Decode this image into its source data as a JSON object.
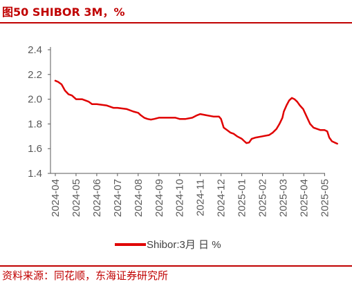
{
  "header": {
    "title": "图50  SHIBOR 3M，%"
  },
  "footer": {
    "source": "资料来源：同花顺，东海证券研究所"
  },
  "colors": {
    "accent": "#c00000",
    "series": "#e00000",
    "axis": "#595959"
  },
  "chart_data": {
    "type": "line",
    "title": "",
    "xlabel": "",
    "ylabel": "",
    "ylim": [
      1.4,
      2.4
    ],
    "yticks": [
      "1.4",
      "1.6",
      "1.8",
      "2.0",
      "2.2",
      "2.4"
    ],
    "xticks": [
      "2024-04",
      "2024-05",
      "2024-06",
      "2024-07",
      "2024-08",
      "2024-09",
      "2024-10",
      "2024-11",
      "2024-12",
      "2025-01",
      "2025-02",
      "2025-03",
      "2025-04",
      "2025-05"
    ],
    "grid": false,
    "legend": "bottom",
    "series": [
      {
        "name": "Shibor:3月 日 %",
        "x": [
          "2024-04-01",
          "2024-04-05",
          "2024-04-10",
          "2024-04-15",
          "2024-04-20",
          "2024-04-25",
          "2024-05-01",
          "2024-05-10",
          "2024-05-20",
          "2024-05-25",
          "2024-06-01",
          "2024-06-15",
          "2024-06-25",
          "2024-07-01",
          "2024-07-15",
          "2024-07-25",
          "2024-08-01",
          "2024-08-05",
          "2024-08-10",
          "2024-08-15",
          "2024-08-20",
          "2024-08-25",
          "2024-09-01",
          "2024-09-15",
          "2024-09-25",
          "2024-10-01",
          "2024-10-10",
          "2024-10-20",
          "2024-10-27",
          "2024-11-01",
          "2024-11-10",
          "2024-11-20",
          "2024-11-28",
          "2024-12-01",
          "2024-12-05",
          "2024-12-10",
          "2024-12-15",
          "2024-12-20",
          "2024-12-25",
          "2025-01-01",
          "2025-01-05",
          "2025-01-08",
          "2025-01-12",
          "2025-01-16",
          "2025-01-22",
          "2025-02-01",
          "2025-02-10",
          "2025-02-15",
          "2025-02-20",
          "2025-02-24",
          "2025-02-28",
          "2025-03-02",
          "2025-03-06",
          "2025-03-10",
          "2025-03-14",
          "2025-03-18",
          "2025-03-22",
          "2025-03-26",
          "2025-03-31",
          "2025-04-05",
          "2025-04-10",
          "2025-04-15",
          "2025-04-20",
          "2025-04-25",
          "2025-05-01",
          "2025-05-05",
          "2025-05-08",
          "2025-05-12",
          "2025-05-16",
          "2025-05-20"
        ],
        "values": [
          2.15,
          2.14,
          2.12,
          2.07,
          2.04,
          2.03,
          2.0,
          2.0,
          1.98,
          1.96,
          1.96,
          1.95,
          1.93,
          1.93,
          1.92,
          1.9,
          1.89,
          1.87,
          1.85,
          1.84,
          1.835,
          1.84,
          1.85,
          1.85,
          1.85,
          1.84,
          1.84,
          1.85,
          1.87,
          1.88,
          1.87,
          1.86,
          1.86,
          1.84,
          1.77,
          1.75,
          1.73,
          1.72,
          1.7,
          1.68,
          1.66,
          1.645,
          1.65,
          1.68,
          1.69,
          1.7,
          1.71,
          1.73,
          1.76,
          1.8,
          1.85,
          1.9,
          1.95,
          1.99,
          2.01,
          2.0,
          1.98,
          1.95,
          1.92,
          1.86,
          1.8,
          1.77,
          1.76,
          1.75,
          1.75,
          1.74,
          1.69,
          1.66,
          1.65,
          1.64
        ]
      }
    ]
  }
}
